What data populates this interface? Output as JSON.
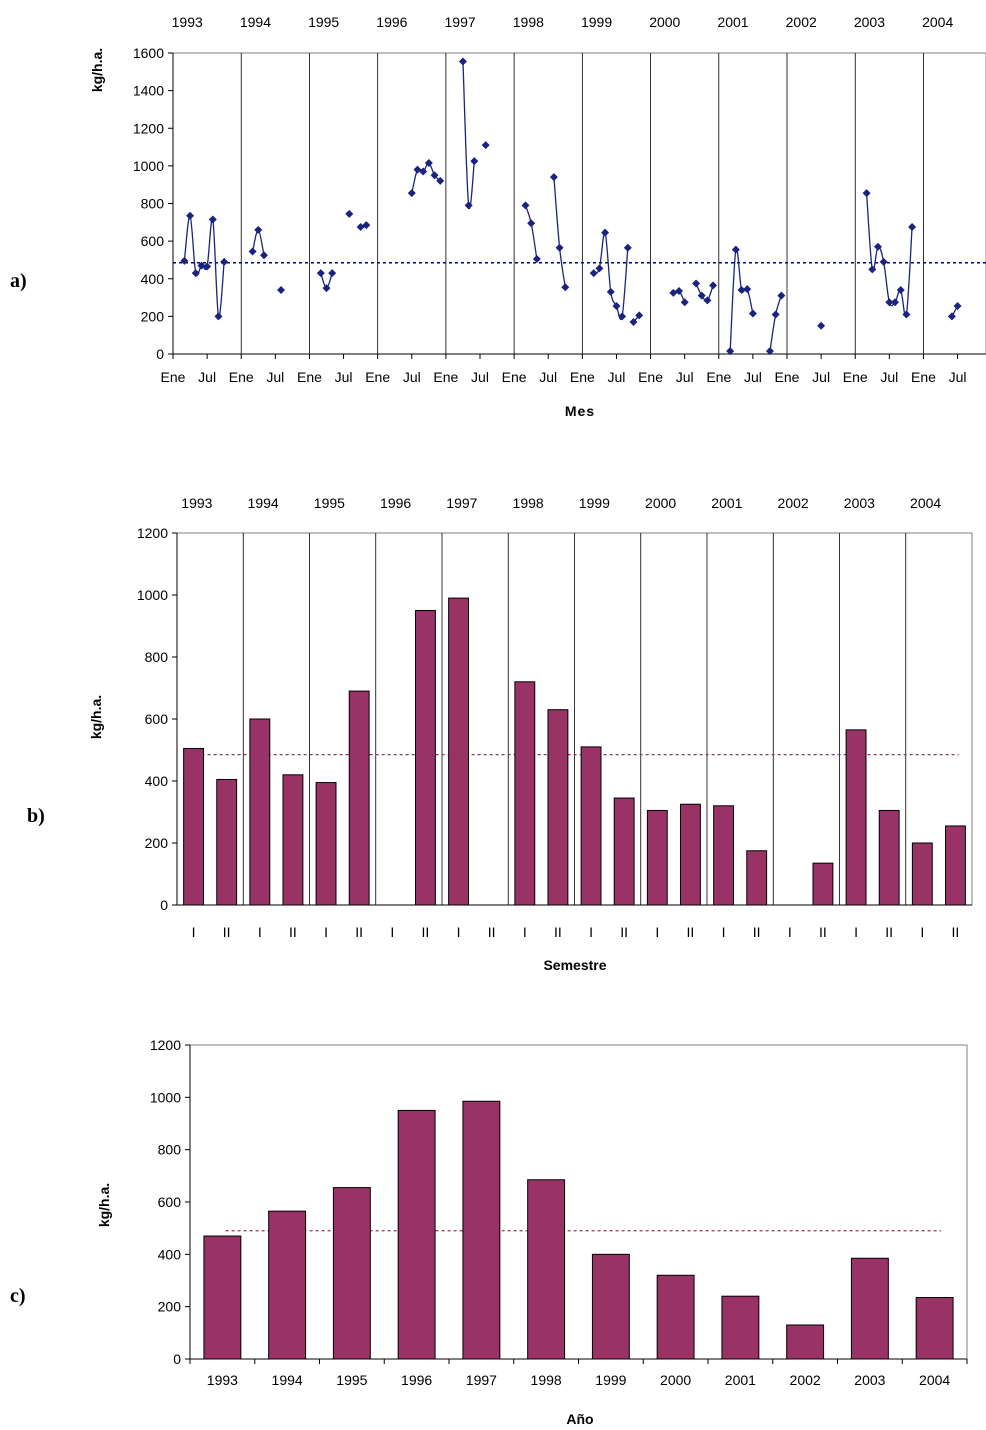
{
  "colors": {
    "line": "#1a237e",
    "bar": "#993366",
    "bar_stroke": "#000000",
    "ref_a": "#000080",
    "ref_bc": "#993366",
    "ylabel_a": "#1a237e"
  },
  "chart_data": [
    {
      "panel_label": "a)",
      "type": "line",
      "xlabel": "Mes",
      "ylabel": "kg/h.a.",
      "ylim": [
        0,
        1600
      ],
      "yticks": [
        0,
        200,
        400,
        600,
        800,
        1000,
        1200,
        1400,
        1600
      ],
      "year_labels": [
        "1993",
        "1994",
        "1995",
        "1996",
        "1997",
        "1998",
        "1999",
        "2000",
        "2001",
        "2002",
        "2003",
        "2004"
      ],
      "month_tick_labels": [
        "Ene",
        "Jul",
        "Ene",
        "Jul",
        "Ene",
        "Jul",
        "Ene",
        "Jul",
        "Ene",
        "Jul",
        "Ene",
        "Jul",
        "Ene",
        "Jul",
        "Ene",
        "Jul",
        "Ene",
        "Jul",
        "Ene",
        "Jul",
        "Ene",
        "Jul",
        "Ene",
        "Jul"
      ],
      "x_unit": "months since Jan 1993",
      "reference_line": 485,
      "grid": "vertical lines at year boundaries",
      "series": [
        {
          "points": [
            [
              2,
              495
            ],
            [
              3,
              735
            ],
            [
              4,
              430
            ],
            [
              5,
              470
            ],
            [
              6,
              465
            ],
            [
              7,
              715
            ],
            [
              8,
              200
            ],
            [
              9,
              490
            ]
          ]
        },
        {
          "points": [
            [
              14,
              545
            ],
            [
              15,
              660
            ],
            [
              16,
              525
            ]
          ]
        },
        {
          "points": [
            [
              19,
              340
            ]
          ]
        },
        {
          "points": [
            [
              26,
              430
            ],
            [
              27,
              350
            ],
            [
              28,
              430
            ]
          ]
        },
        {
          "points": [
            [
              31,
              745
            ]
          ]
        },
        {
          "points": [
            [
              33,
              675
            ],
            [
              34,
              685
            ]
          ]
        },
        {
          "points": [
            [
              42,
              855
            ],
            [
              43,
              980
            ],
            [
              44,
              970
            ],
            [
              45,
              1015
            ],
            [
              46,
              950
            ],
            [
              47,
              920
            ]
          ]
        },
        {
          "points": [
            [
              51,
              1555
            ],
            [
              52,
              790
            ],
            [
              53,
              1025
            ]
          ]
        },
        {
          "points": [
            [
              55,
              1110
            ]
          ]
        },
        {
          "points": [
            [
              62,
              790
            ],
            [
              63,
              695
            ],
            [
              64,
              505
            ]
          ]
        },
        {
          "points": [
            [
              67,
              940
            ],
            [
              68,
              565
            ],
            [
              69,
              355
            ]
          ]
        },
        {
          "points": [
            [
              74,
              430
            ],
            [
              75,
              455
            ],
            [
              76,
              645
            ],
            [
              77,
              330
            ],
            [
              78,
              255
            ],
            [
              79,
              200
            ],
            [
              80,
              565
            ]
          ]
        },
        {
          "points": [
            [
              81,
              170
            ],
            [
              82,
              205
            ]
          ]
        },
        {
          "points": [
            [
              88,
              325
            ],
            [
              89,
              335
            ],
            [
              90,
              275
            ]
          ]
        },
        {
          "points": [
            [
              92,
              375
            ],
            [
              93,
              310
            ],
            [
              94,
              285
            ],
            [
              95,
              365
            ]
          ]
        },
        {
          "points": [
            [
              98,
              15
            ],
            [
              99,
              555
            ],
            [
              100,
              340
            ],
            [
              101,
              345
            ],
            [
              102,
              215
            ]
          ]
        },
        {
          "points": [
            [
              105,
              15
            ],
            [
              106,
              210
            ],
            [
              107,
              310
            ]
          ]
        },
        {
          "points": [
            [
              114,
              150
            ]
          ]
        },
        {
          "points": [
            [
              122,
              855
            ],
            [
              123,
              450
            ],
            [
              124,
              570
            ],
            [
              125,
              490
            ],
            [
              126,
              275
            ],
            [
              127,
              275
            ],
            [
              128,
              340
            ],
            [
              129,
              210
            ],
            [
              130,
              675
            ]
          ]
        },
        {
          "points": [
            [
              137,
              200
            ],
            [
              138,
              255
            ]
          ]
        }
      ]
    },
    {
      "panel_label": "b)",
      "type": "bar",
      "xlabel": "Semestre",
      "ylabel": "kg/h.a.",
      "ylim": [
        0,
        1200
      ],
      "yticks": [
        0,
        200,
        400,
        600,
        800,
        1000,
        1200
      ],
      "year_labels": [
        "1993",
        "1994",
        "1995",
        "1996",
        "1997",
        "1998",
        "1999",
        "2000",
        "2001",
        "2002",
        "2003",
        "2004"
      ],
      "categories": [
        "I",
        "II",
        "I",
        "II",
        "I",
        "II",
        "I",
        "II",
        "I",
        "II",
        "I",
        "II",
        "I",
        "II",
        "I",
        "II",
        "I",
        "II",
        "I",
        "II",
        "I",
        "II",
        "I",
        "II"
      ],
      "values": [
        505,
        405,
        600,
        420,
        395,
        690,
        null,
        950,
        990,
        null,
        720,
        630,
        510,
        345,
        305,
        325,
        320,
        175,
        null,
        135,
        565,
        305,
        200,
        255
      ],
      "reference_line": 485,
      "grid": "vertical lines at year boundaries"
    },
    {
      "panel_label": "c)",
      "type": "bar",
      "xlabel": "Año",
      "ylabel": "kg/h.a.",
      "ylim": [
        0,
        1200
      ],
      "yticks": [
        0,
        200,
        400,
        600,
        800,
        1000,
        1200
      ],
      "categories": [
        "1993",
        "1994",
        "1995",
        "1996",
        "1997",
        "1998",
        "1999",
        "2000",
        "2001",
        "2002",
        "2003",
        "2004"
      ],
      "values": [
        470,
        565,
        655,
        950,
        985,
        685,
        400,
        320,
        240,
        130,
        385,
        235
      ],
      "reference_line": 490,
      "grid": "none"
    }
  ]
}
